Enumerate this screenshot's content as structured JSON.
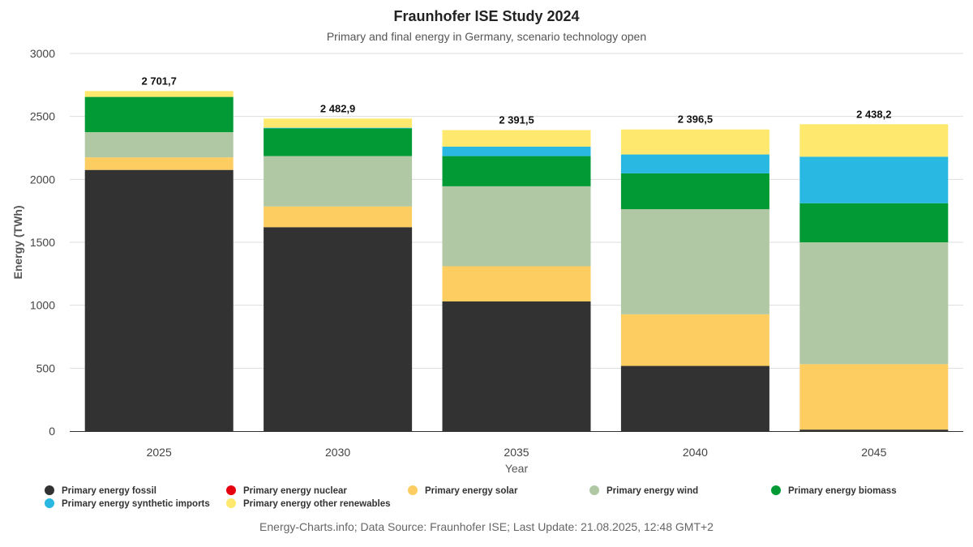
{
  "chart_data": {
    "type": "bar",
    "stacked": true,
    "title": "Fraunhofer ISE Study 2024",
    "subtitle": "Primary and final energy in Germany, scenario technology open",
    "xlabel": "Year",
    "ylabel": "Energy (TWh)",
    "ylim": [
      0,
      3000
    ],
    "yticks": [
      0,
      500,
      1000,
      1500,
      2000,
      2500,
      3000
    ],
    "categories": [
      "2025",
      "2030",
      "2035",
      "2040",
      "2045"
    ],
    "totals": [
      "2 701,7",
      "2 482,9",
      "2 391,5",
      "2 396,5",
      "2 438,2"
    ],
    "series": [
      {
        "name": "Primary energy fossil",
        "color": "#323232",
        "values": [
          2075,
          1620,
          1030,
          518,
          12
        ]
      },
      {
        "name": "Primary energy nuclear",
        "color": "#e5000f",
        "values": [
          0,
          0,
          0,
          0,
          0
        ]
      },
      {
        "name": "Primary energy solar",
        "color": "#fdcd62",
        "values": [
          100,
          165,
          280,
          410,
          520
        ]
      },
      {
        "name": "Primary energy wind",
        "color": "#b0c8a4",
        "values": [
          200,
          400,
          635,
          835,
          968
        ]
      },
      {
        "name": "Primary energy biomass",
        "color": "#019a35",
        "values": [
          280,
          220,
          240,
          285,
          310
        ]
      },
      {
        "name": "Primary energy synthetic imports",
        "color": "#29b8e2",
        "values": [
          0,
          5,
          75,
          150,
          370
        ]
      },
      {
        "name": "Primary energy other renewables",
        "color": "#fee96e",
        "values": [
          46.7,
          72.9,
          131.5,
          198.5,
          258.2
        ]
      }
    ],
    "legend_position": "bottom",
    "grid": true
  },
  "footer": {
    "source": "Energy-Charts.info; Data Source: Fraunhofer ISE; Last Update: 21.08.2025, 12:48 GMT+2"
  }
}
